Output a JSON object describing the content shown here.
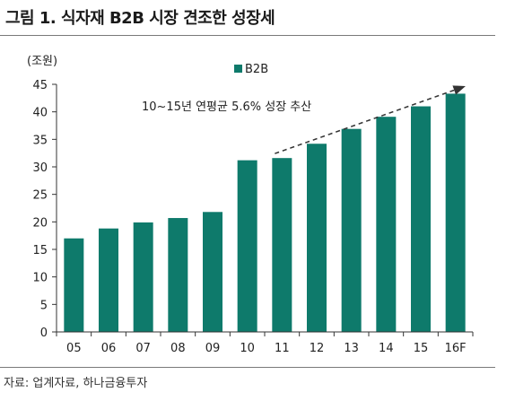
{
  "title": "그림 1. 식자재 B2B 시장 견조한 성장세",
  "source": "자료: 업계자료, 하나금융투자",
  "colors": {
    "bar": "#0e7a6b",
    "axis": "#333333"
  },
  "chart_data": {
    "type": "bar",
    "unit_label": "(조원)",
    "categories": [
      "05",
      "06",
      "07",
      "08",
      "09",
      "10",
      "11",
      "12",
      "13",
      "14",
      "15",
      "16F"
    ],
    "series": [
      {
        "name": "B2B",
        "values": [
          17,
          18.8,
          19.9,
          20.7,
          21.8,
          31.2,
          31.6,
          34.2,
          36.9,
          39.1,
          41,
          43.3
        ]
      }
    ],
    "yticks": [
      0,
      5,
      10,
      15,
      20,
      25,
      30,
      35,
      40,
      45
    ],
    "ylim": [
      0,
      45
    ],
    "legend": "top-center",
    "annotation": {
      "text": "10~15년 연평균 5.6% 성장 추산",
      "arrow_from": "11",
      "arrow_to": "16F"
    },
    "grid": false
  }
}
